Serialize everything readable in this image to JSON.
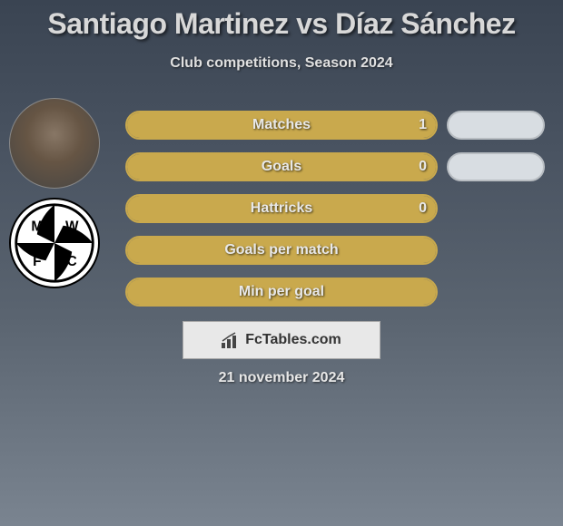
{
  "title": "Santiago Martinez vs Díaz Sánchez",
  "subtitle": "Club competitions, Season 2024",
  "footer_date": "21 november 2024",
  "watermark": "FcTables.com",
  "colors": {
    "player1_border": "#c9a94d",
    "player1_fill": "#c9a94d",
    "player2_pill": "#d8dde2",
    "player2_border": "#b8bdc2",
    "text_light": "#e8e8e8"
  },
  "pills": {
    "shown": [
      true,
      true,
      false,
      false,
      false
    ]
  },
  "stats": [
    {
      "label": "Matches",
      "value": "1",
      "fill_pct": 100,
      "show_value": true
    },
    {
      "label": "Goals",
      "value": "0",
      "fill_pct": 100,
      "show_value": true
    },
    {
      "label": "Hattricks",
      "value": "0",
      "fill_pct": 100,
      "show_value": true
    },
    {
      "label": "Goals per match",
      "value": "",
      "fill_pct": 100,
      "show_value": false
    },
    {
      "label": "Min per goal",
      "value": "",
      "fill_pct": 100,
      "show_value": false
    }
  ],
  "team_logo": {
    "letters": [
      "M",
      "W",
      "F",
      "C"
    ]
  }
}
